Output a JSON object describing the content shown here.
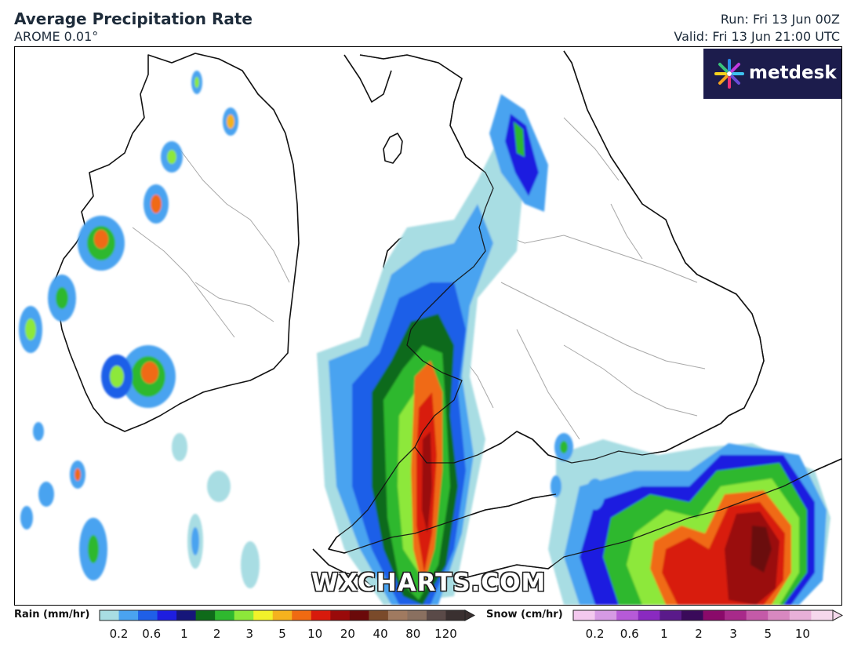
{
  "header": {
    "title": "Average Precipitation Rate",
    "model": "AROME 0.01°",
    "run": "Run: Fri 13 Jun 00Z",
    "valid": "Valid: Fri 13 Jun 21:00 UTC"
  },
  "branding": {
    "logo_text": "metdesk",
    "watermark": "WXCHARTS.COM",
    "logo_bg": "#1c1c4c"
  },
  "legend": {
    "rain": {
      "label": "Rain (mm/hr)",
      "ticks": [
        "0.2",
        "0.6",
        "1",
        "2",
        "3",
        "5",
        "10",
        "20",
        "40",
        "80",
        "120"
      ],
      "colors": [
        "#a8dde3",
        "#4aa3f0",
        "#1f5fe8",
        "#1e1ee0",
        "#16167a",
        "#0f6b1a",
        "#2fb82f",
        "#8de83a",
        "#f2f22a",
        "#f5b21e",
        "#f06a12",
        "#d81a0c",
        "#9a0a0a",
        "#6b0a0a",
        "#7a4a2a",
        "#a07a60",
        "#8a7060",
        "#5a4a48",
        "#3a3030"
      ]
    },
    "snow": {
      "label": "Snow (cm/hr)",
      "ticks": [
        "0.2",
        "0.6",
        "1",
        "2",
        "3",
        "5",
        "10"
      ],
      "colors": [
        "#f3c8ee",
        "#d69ae4",
        "#b65ad8",
        "#8a2ac0",
        "#5a1a8a",
        "#3a0a5a",
        "#8a0a6a",
        "#a82a8a",
        "#c45aa8",
        "#d888c0",
        "#e8b0d8",
        "#f5d8ec"
      ]
    }
  }
}
